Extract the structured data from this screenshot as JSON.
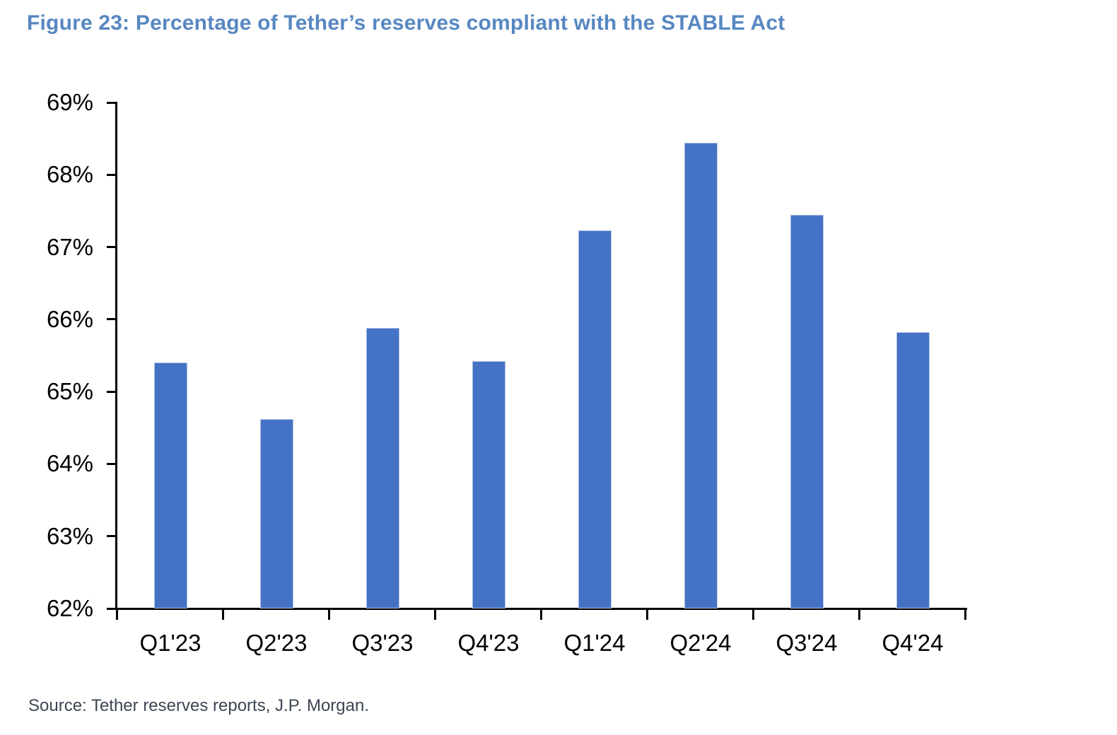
{
  "title": "Figure 23: Percentage of Tether’s reserves compliant with the STABLE Act",
  "source": "Source: Tether reserves reports, J.P. Morgan.",
  "colors": {
    "bar": "#4472C4",
    "title": "#5787C1",
    "axis": "#000000",
    "source_text": "#3D4653"
  },
  "chart_data": {
    "type": "bar",
    "title": "Figure 23: Percentage of Tether’s reserves compliant with the STABLE Act",
    "categories": [
      "Q1'23",
      "Q2'23",
      "Q3'23",
      "Q4'23",
      "Q1'24",
      "Q2'24",
      "Q3'24",
      "Q4'24"
    ],
    "values": [
      65.4,
      64.62,
      65.88,
      65.42,
      67.23,
      68.44,
      67.45,
      65.82
    ],
    "unit": "%",
    "xlabel": "",
    "ylabel": "",
    "ylim": [
      62,
      69
    ],
    "ytick_step": 1,
    "ytick_labels": [
      "69%",
      "68%",
      "67%",
      "66%",
      "65%",
      "64%",
      "63%",
      "62%"
    ],
    "grid": false,
    "legend_position": "none",
    "bar_color": "#4472C4"
  }
}
